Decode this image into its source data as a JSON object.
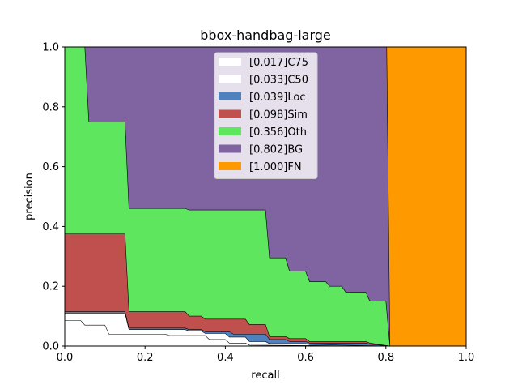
{
  "chart_data": {
    "type": "area",
    "title": "bbox-handbag-large",
    "xlabel": "recall",
    "ylabel": "precision",
    "xlim": [
      0,
      1
    ],
    "ylim": [
      0,
      1
    ],
    "xticks": [
      "0.0",
      "0.2",
      "0.4",
      "0.6",
      "0.8",
      "1.0"
    ],
    "yticks": [
      "0.0",
      "0.2",
      "0.4",
      "0.6",
      "0.8",
      "1.0"
    ],
    "grid": false,
    "legend_position": "top-center",
    "series": [
      {
        "name": "[1.000]FN",
        "color": "#ff9900",
        "points": [
          [
            0,
            1
          ],
          [
            1,
            1
          ],
          [
            1,
            0
          ],
          [
            0,
            0
          ]
        ]
      },
      {
        "name": "[0.802]BG",
        "color": "#8064a2",
        "points": [
          [
            0,
            1
          ],
          [
            0.802,
            1
          ],
          [
            0.81,
            0.0
          ],
          [
            0.81,
            0
          ]
        ]
      },
      {
        "name": "[0.356]Oth",
        "color": "#5ee65e",
        "points": [
          [
            0,
            1
          ],
          [
            0.05,
            1
          ],
          [
            0.06,
            0.75
          ],
          [
            0.15,
            0.75
          ],
          [
            0.16,
            0.46
          ],
          [
            0.3,
            0.46
          ],
          [
            0.31,
            0.455
          ],
          [
            0.5,
            0.455
          ],
          [
            0.51,
            0.295
          ],
          [
            0.55,
            0.295
          ],
          [
            0.56,
            0.25
          ],
          [
            0.6,
            0.25
          ],
          [
            0.61,
            0.215
          ],
          [
            0.65,
            0.215
          ],
          [
            0.66,
            0.2
          ],
          [
            0.69,
            0.2
          ],
          [
            0.7,
            0.18
          ],
          [
            0.75,
            0.18
          ],
          [
            0.76,
            0.15
          ],
          [
            0.8,
            0.15
          ],
          [
            0.81,
            0.0
          ]
        ]
      },
      {
        "name": "[0.098]Sim",
        "color": "#c0504d",
        "points": [
          [
            0,
            0.375
          ],
          [
            0.15,
            0.375
          ],
          [
            0.16,
            0.115
          ],
          [
            0.3,
            0.115
          ],
          [
            0.31,
            0.1
          ],
          [
            0.34,
            0.1
          ],
          [
            0.35,
            0.09
          ],
          [
            0.45,
            0.09
          ],
          [
            0.46,
            0.072
          ],
          [
            0.5,
            0.072
          ],
          [
            0.51,
            0.032
          ],
          [
            0.55,
            0.032
          ],
          [
            0.56,
            0.025
          ],
          [
            0.6,
            0.025
          ],
          [
            0.61,
            0.015
          ],
          [
            0.75,
            0.015
          ],
          [
            0.76,
            0.01
          ],
          [
            0.81,
            0.0
          ]
        ]
      },
      {
        "name": "[0.039]Loc",
        "color": "#4f81bd",
        "points": [
          [
            0,
            0.115
          ],
          [
            0.15,
            0.115
          ],
          [
            0.16,
            0.06
          ],
          [
            0.3,
            0.06
          ],
          [
            0.31,
            0.055
          ],
          [
            0.34,
            0.055
          ],
          [
            0.35,
            0.048
          ],
          [
            0.41,
            0.048
          ],
          [
            0.42,
            0.04
          ],
          [
            0.5,
            0.04
          ],
          [
            0.51,
            0.022
          ],
          [
            0.55,
            0.022
          ],
          [
            0.56,
            0.015
          ],
          [
            0.6,
            0.015
          ],
          [
            0.61,
            0.01
          ],
          [
            0.75,
            0.01
          ],
          [
            0.76,
            0.006
          ],
          [
            0.81,
            0.0
          ]
        ]
      },
      {
        "name": "[0.033]C50",
        "color": "#ffffff",
        "points": [
          [
            0,
            0.11
          ],
          [
            0.15,
            0.11
          ],
          [
            0.16,
            0.055
          ],
          [
            0.3,
            0.055
          ],
          [
            0.31,
            0.05
          ],
          [
            0.34,
            0.05
          ],
          [
            0.35,
            0.042
          ],
          [
            0.4,
            0.042
          ],
          [
            0.41,
            0.03
          ],
          [
            0.45,
            0.03
          ],
          [
            0.46,
            0.015
          ],
          [
            0.5,
            0.015
          ],
          [
            0.51,
            0.008
          ],
          [
            0.6,
            0.008
          ],
          [
            0.61,
            0.005
          ],
          [
            0.81,
            0.0
          ]
        ]
      },
      {
        "name": "[0.017]C75",
        "color": "#ffffff",
        "points": [
          [
            0,
            0.085
          ],
          [
            0.04,
            0.085
          ],
          [
            0.05,
            0.07
          ],
          [
            0.1,
            0.07
          ],
          [
            0.11,
            0.04
          ],
          [
            0.25,
            0.04
          ],
          [
            0.26,
            0.035
          ],
          [
            0.35,
            0.035
          ],
          [
            0.36,
            0.022
          ],
          [
            0.4,
            0.022
          ],
          [
            0.41,
            0.01
          ],
          [
            0.45,
            0.01
          ],
          [
            0.46,
            0.003
          ],
          [
            0.81,
            0.0
          ]
        ]
      }
    ],
    "legend_order": [
      "[0.017]C75",
      "[0.033]C50",
      "[0.039]Loc",
      "[0.098]Sim",
      "[0.356]Oth",
      "[0.802]BG",
      "[1.000]FN"
    ]
  }
}
